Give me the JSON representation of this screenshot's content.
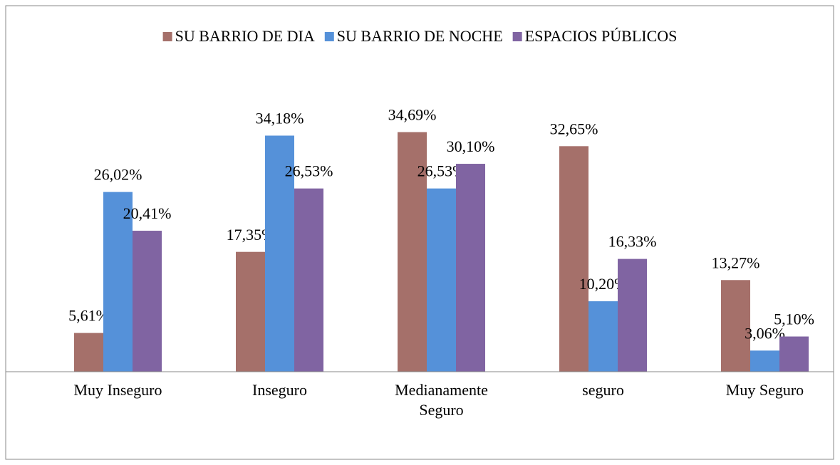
{
  "chart_data": {
    "type": "bar",
    "categories": [
      "Muy Inseguro",
      "Inseguro",
      "Medianamente Seguro",
      "seguro",
      "Muy Seguro"
    ],
    "series": [
      {
        "name": "SU BARRIO DE DIA",
        "color": "#a5706a",
        "values": [
          5.61,
          17.35,
          34.69,
          32.65,
          13.27
        ],
        "value_labels": [
          "5,61%",
          "17,35%",
          "34,69%",
          "32,65%",
          "13,27%"
        ]
      },
      {
        "name": "SU BARRIO DE NOCHE",
        "color": "#5591d9",
        "values": [
          26.02,
          34.18,
          26.53,
          10.2,
          3.06
        ],
        "value_labels": [
          "26,02%",
          "34,18%",
          "26,53%",
          "10,20%",
          "3,06%"
        ]
      },
      {
        "name": "ESPACIOS PÚBLICOS",
        "color": "#8064a2",
        "values": [
          20.41,
          26.53,
          30.1,
          16.33,
          5.1
        ],
        "value_labels": [
          "20,41%",
          "26,53%",
          "30,10%",
          "16,33%",
          "5,10%"
        ]
      }
    ],
    "ylim": [
      0,
      40
    ],
    "legend": "top"
  }
}
